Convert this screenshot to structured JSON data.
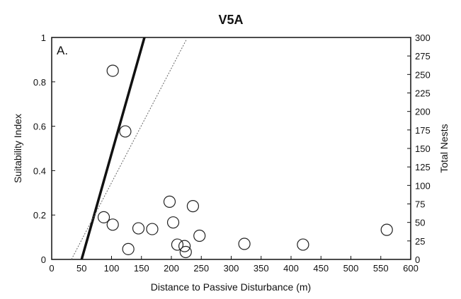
{
  "chart_data": {
    "type": "scatter",
    "title": "V5A",
    "panel_label": "A.",
    "xlabel": "Distance to Passive Disturbance (m)",
    "ylabel": "Suitability Index",
    "y2label": "Total Nests",
    "xlim": [
      0,
      600
    ],
    "ylim": [
      0,
      1
    ],
    "y2lim": [
      0,
      300
    ],
    "x_ticks": [
      0,
      50,
      100,
      150,
      200,
      250,
      300,
      350,
      400,
      450,
      500,
      550,
      600
    ],
    "y_ticks": [
      "0",
      "0.2",
      "0.4",
      "0.6",
      "0.8",
      "1"
    ],
    "y_tick_values": [
      0,
      0.2,
      0.4,
      0.6,
      0.8,
      1
    ],
    "y2_ticks": [
      0,
      25,
      50,
      75,
      100,
      125,
      150,
      175,
      200,
      225,
      250,
      275,
      300
    ],
    "grid": false,
    "series": [
      {
        "type": "scatter",
        "axis": "right",
        "points": [
          {
            "x": 102,
            "y": 255
          },
          {
            "x": 123,
            "y": 173
          },
          {
            "x": 87,
            "y": 57
          },
          {
            "x": 102,
            "y": 47
          },
          {
            "x": 128,
            "y": 14
          },
          {
            "x": 145,
            "y": 42
          },
          {
            "x": 168,
            "y": 41
          },
          {
            "x": 197,
            "y": 78
          },
          {
            "x": 203,
            "y": 50
          },
          {
            "x": 210,
            "y": 20
          },
          {
            "x": 222,
            "y": 18
          },
          {
            "x": 224,
            "y": 10
          },
          {
            "x": 236,
            "y": 72
          },
          {
            "x": 247,
            "y": 32
          },
          {
            "x": 322,
            "y": 21
          },
          {
            "x": 420,
            "y": 20
          },
          {
            "x": 560,
            "y": 40
          }
        ]
      },
      {
        "type": "line",
        "style": "solid-bold",
        "axis": "left",
        "points": [
          {
            "x": 50,
            "y": 0
          },
          {
            "x": 155,
            "y": 1
          }
        ]
      },
      {
        "type": "line",
        "style": "dotted",
        "axis": "left",
        "points": [
          {
            "x": 33,
            "y": 0
          },
          {
            "x": 225,
            "y": 0.99
          }
        ]
      }
    ]
  }
}
